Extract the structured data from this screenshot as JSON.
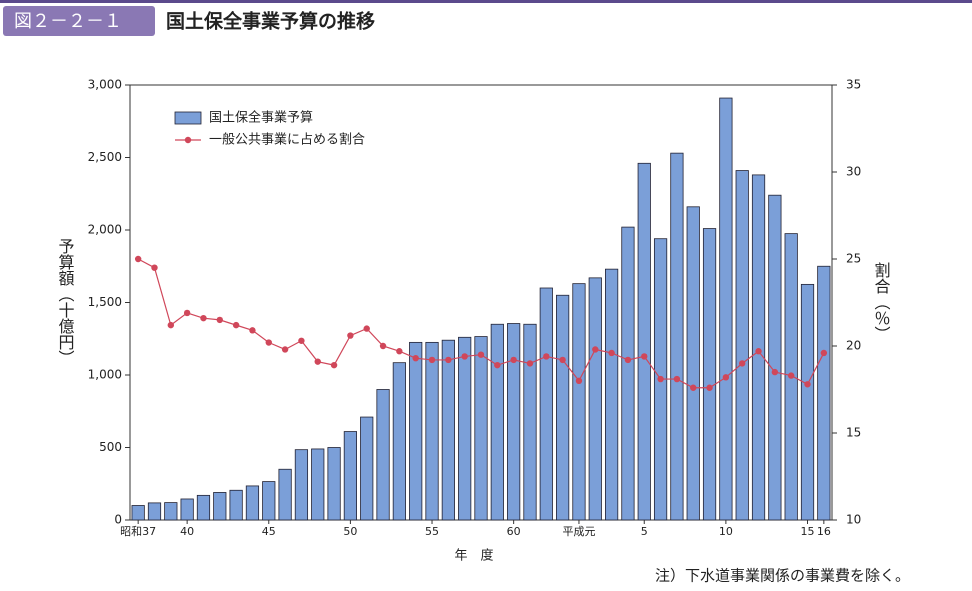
{
  "header": {
    "figure": "図２－２－１",
    "title": "国土保全事業予算の推移"
  },
  "note": "注）下水道事業関係の事業費を除く。",
  "chart_data": {
    "type": "bar",
    "y_label": "予算額（十億円）",
    "y2_label": "割合（％）",
    "x_label": "年　度",
    "categories": [
      "昭和37",
      null,
      null,
      "40",
      null,
      null,
      null,
      null,
      "45",
      null,
      null,
      null,
      null,
      "50",
      null,
      null,
      null,
      null,
      "55",
      null,
      null,
      null,
      null,
      "60",
      null,
      null,
      null,
      "平成元",
      null,
      null,
      null,
      "5",
      null,
      null,
      null,
      null,
      "10",
      null,
      null,
      null,
      null,
      "15",
      "16"
    ],
    "series": [
      {
        "name": "国土保全事業予算",
        "color": "#7b9fd8",
        "type": "bar",
        "values": [
          100,
          118,
          120,
          145,
          170,
          190,
          205,
          235,
          265,
          350,
          485,
          490,
          500,
          610,
          710,
          900,
          1085,
          1225,
          1225,
          1240,
          1260,
          1265,
          1350,
          1355,
          1350,
          1600,
          1550,
          1630,
          1670,
          1730,
          2020,
          2460,
          1940,
          2530,
          2160,
          2010,
          2910,
          2410,
          2380,
          2240,
          1975,
          1625,
          1750
        ]
      },
      {
        "name": "一般公共事業に占める割合",
        "color": "#d0475a",
        "type": "line",
        "axis": "y2",
        "values": [
          25.0,
          24.5,
          21.2,
          21.9,
          21.6,
          21.5,
          21.2,
          20.9,
          20.2,
          19.8,
          20.3,
          19.1,
          18.9,
          20.6,
          21.0,
          20.0,
          19.7,
          19.3,
          19.2,
          19.2,
          19.4,
          19.5,
          18.9,
          19.2,
          19.0,
          19.4,
          19.2,
          18.0,
          19.8,
          19.6,
          19.2,
          19.4,
          18.1,
          18.1,
          17.6,
          17.6,
          18.2,
          19.0,
          19.7,
          18.5,
          18.3,
          17.8,
          19.6
        ]
      }
    ],
    "ylim": [
      0,
      3000
    ],
    "yticks": [
      0,
      500,
      {
        "value": 1000,
        "label": "1,000"
      },
      {
        "value": 1500,
        "label": "1,500"
      },
      {
        "value": 2000,
        "label": "2,000"
      },
      {
        "value": 2500,
        "label": "2,500"
      },
      {
        "value": 3000,
        "label": "3,000"
      }
    ],
    "y2lim": [
      10,
      35
    ],
    "y2ticks": [
      10,
      15,
      20,
      25,
      30,
      35
    ],
    "legend": "upper left"
  }
}
